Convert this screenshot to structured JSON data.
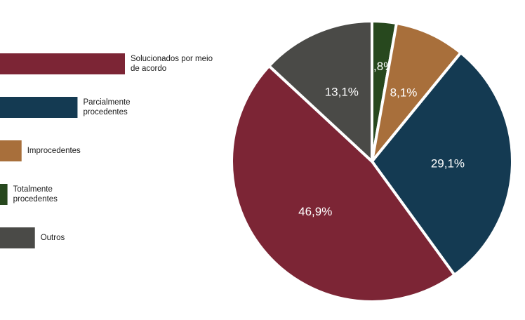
{
  "chart_data": {
    "type": "pie",
    "title": "",
    "categories": [
      "Solucionados por meio de acordo",
      "Parcialmente procedentes",
      "Improcedentes",
      "Totalmente procedentes",
      "Outros"
    ],
    "values": [
      46.9,
      29.1,
      8.1,
      2.8,
      13.1
    ],
    "value_labels": [
      "46,9%",
      "29,1%",
      "8,1%",
      "2,8%",
      "13,1%"
    ],
    "legend_lines": [
      [
        "Solucionados por meio",
        "de acordo"
      ],
      [
        "Parcialmente",
        "procedentes"
      ],
      [
        "Improcedentes"
      ],
      [
        "Totalmente",
        "procedentes"
      ],
      [
        "Outros"
      ]
    ],
    "colors": [
      "#7c2535",
      "#143a52",
      "#a86f3b",
      "#27481e",
      "#4a4a47"
    ],
    "slice_order_clockwise_from_top": [
      3,
      2,
      1,
      0,
      4
    ],
    "legend_placement": "left",
    "legend_bars_scaled_to_value": true
  }
}
